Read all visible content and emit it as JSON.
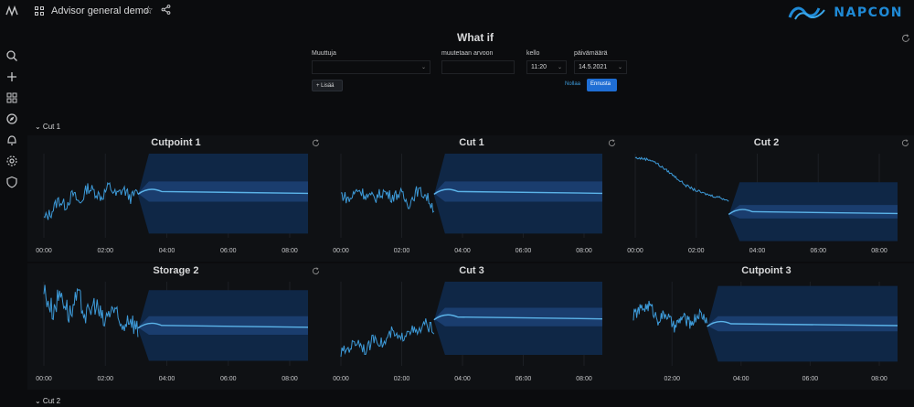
{
  "header": {
    "dashboard_title": "Advisor general demo",
    "brand_name": "NAPCON",
    "brand_color": "#1f8ad6"
  },
  "sidebar": {
    "items": [
      {
        "icon": "search-icon"
      },
      {
        "icon": "plus-icon"
      },
      {
        "icon": "dashboards-icon"
      },
      {
        "icon": "explore-icon"
      },
      {
        "icon": "alerting-bell-icon"
      },
      {
        "icon": "settings-gear-icon"
      },
      {
        "icon": "shield-icon"
      }
    ]
  },
  "whatif": {
    "title": "What if",
    "muuttuja_label": "Muuttuja",
    "muuttuja_value": "",
    "arvo_label": "muutetaan arvoon",
    "arvo_value": "",
    "kello_label": "kello",
    "kello_value": "11:20",
    "paiva_label": "päivämäärä",
    "paiva_value": "14.5.2021",
    "add_label": "+ Lisää",
    "reset_label": "Nollaa",
    "predict_label": "Ennusta",
    "accent": "#1f6ed4"
  },
  "rows": {
    "row1_label": "⌄ Cut 1",
    "row2_label": "⌄ Cut 2"
  },
  "chart_colors": {
    "line": "#3d9ad8",
    "band_outer": "#0f2746",
    "band_inner": "#1a3d6e",
    "forecast_line": "#5bb3e8"
  },
  "chart_data": [
    {
      "type": "line",
      "title": "Cutpoint 1",
      "x_ticks": [
        "00:00",
        "02:00",
        "04:00",
        "06:00",
        "08:00"
      ],
      "series": [
        {
          "values": [
            0.22,
            0.3,
            0.45,
            0.38,
            0.52,
            0.4,
            0.6,
            0.55,
            0.48,
            0.62,
            0.5,
            0.58,
            0.47,
            0.55
          ]
        }
      ],
      "forecast": {
        "center": 0.55,
        "inner_half": 0.12,
        "outer_half": 0.5
      }
    },
    {
      "type": "line",
      "title": "Cut 1",
      "x_ticks": [
        "00:00",
        "02:00",
        "04:00",
        "06:00",
        "08:00"
      ],
      "series": [
        {
          "values": [
            0.52,
            0.45,
            0.58,
            0.5,
            0.47,
            0.55,
            0.49,
            0.53,
            0.4,
            0.56,
            0.51,
            0.35
          ]
        }
      ],
      "forecast": {
        "center": 0.55,
        "inner_half": 0.12,
        "outer_half": 0.5
      }
    },
    {
      "type": "line",
      "title": "Cut 2",
      "x_ticks": [
        "00:00",
        "02:00",
        "04:00",
        "06:00",
        "08:00"
      ],
      "series": [
        {
          "values": [
            0.95,
            0.94,
            0.92,
            0.85,
            0.78,
            0.7,
            0.62,
            0.57,
            0.53,
            0.5,
            0.48,
            0.44
          ]
        }
      ],
      "forecast": {
        "center": 0.31,
        "inner_half": 0.08,
        "outer_half": 0.35
      }
    },
    {
      "type": "line",
      "title": "Storage 2",
      "x_ticks": [
        "00:00",
        "02:00",
        "04:00",
        "06:00",
        "08:00"
      ],
      "series": [
        {
          "values": [
            0.9,
            0.65,
            0.88,
            0.6,
            0.82,
            0.58,
            0.75,
            0.5,
            0.7,
            0.45,
            0.6,
            0.42
          ]
        }
      ],
      "forecast": {
        "center": 0.48,
        "inner_half": 0.11,
        "outer_half": 0.42
      }
    },
    {
      "type": "line",
      "title": "Cut 3",
      "x_ticks": [
        "00:00",
        "02:00",
        "04:00",
        "06:00",
        "08:00"
      ],
      "series": [
        {
          "values": [
            0.15,
            0.22,
            0.3,
            0.18,
            0.35,
            0.25,
            0.4,
            0.3,
            0.45,
            0.38,
            0.5,
            0.42
          ]
        }
      ],
      "forecast": {
        "center": 0.58,
        "inner_half": 0.11,
        "outer_half": 0.45
      }
    },
    {
      "type": "line",
      "title": "Cutpoint 3",
      "x_ticks": [
        "02:00",
        "04:00",
        "06:00",
        "08:00"
      ],
      "series": [
        {
          "values": [
            0.6,
            0.68,
            0.72,
            0.55,
            0.62,
            0.45,
            0.58,
            0.5,
            0.62,
            0.55
          ]
        }
      ],
      "forecast": {
        "center": 0.5,
        "inner_half": 0.09,
        "outer_half": 0.45
      }
    }
  ]
}
